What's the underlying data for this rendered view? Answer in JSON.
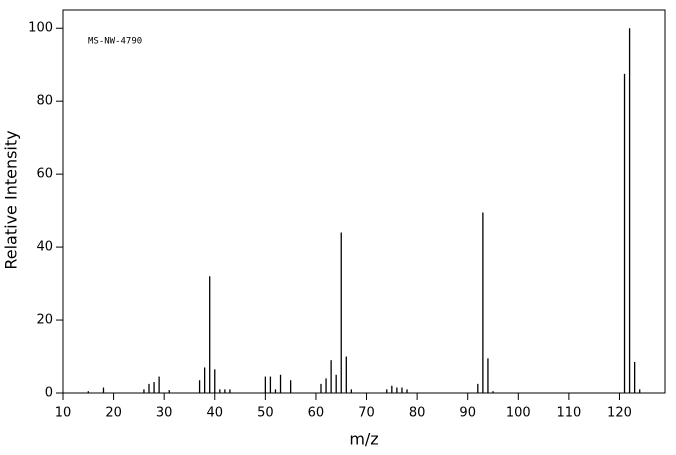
{
  "chart_data": {
    "type": "bar",
    "annotation": "MS-NW-4790",
    "x_label": "m/z",
    "y_label": "Relative Intensity",
    "color": "#000000",
    "x": [
      15,
      18,
      26,
      27,
      28,
      29,
      31,
      37,
      38,
      39,
      40,
      41,
      42,
      43,
      50,
      51,
      52,
      53,
      55,
      61,
      62,
      63,
      64,
      65,
      66,
      67,
      74,
      75,
      76,
      77,
      78,
      92,
      93,
      94,
      95,
      121,
      122,
      123,
      124
    ],
    "values": [
      0.5,
      1.5,
      1,
      2.5,
      3,
      4.5,
      0.8,
      3.5,
      7,
      32,
      6.5,
      1,
      1,
      1,
      4.5,
      4.5,
      1,
      5,
      3.5,
      2.5,
      4,
      9,
      5,
      44,
      10,
      1,
      1,
      2,
      1.5,
      1.5,
      1,
      2.5,
      49.5,
      9.5,
      0.5,
      87.5,
      100,
      8.5,
      1
    ],
    "xlim": [
      10,
      129
    ],
    "ylim": [
      0,
      105
    ],
    "xticks": [
      10,
      20,
      30,
      40,
      50,
      60,
      70,
      80,
      90,
      100,
      110,
      120
    ],
    "yticks": [
      0,
      20,
      40,
      60,
      80,
      100
    ]
  }
}
